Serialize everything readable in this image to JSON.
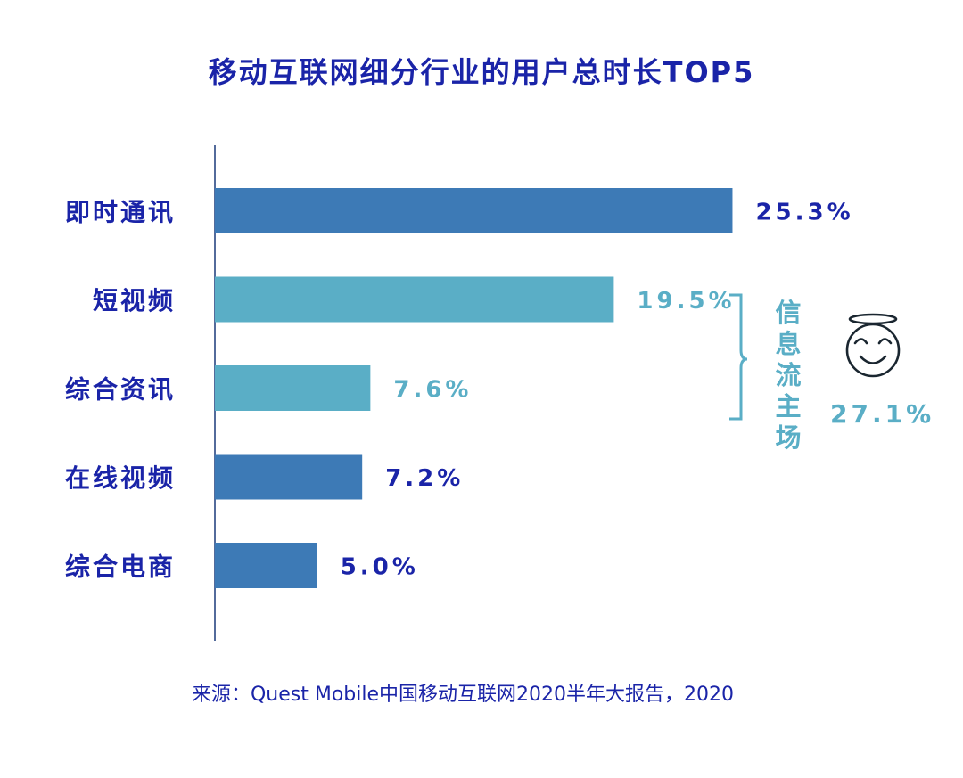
{
  "chart_data": {
    "type": "bar",
    "orientation": "horizontal",
    "title": "移动互联网细分行业的用户总时长TOP5",
    "categories": [
      "即时通讯",
      "短视频",
      "综合资讯",
      "在线视频",
      "综合电商"
    ],
    "values": [
      25.3,
      19.5,
      7.6,
      7.2,
      5.0
    ],
    "value_labels": [
      "25.3%",
      "19.5%",
      "7.6%",
      "7.2%",
      "5.0%"
    ],
    "highlighted": [
      false,
      true,
      true,
      false,
      false
    ],
    "xlim": [
      0,
      26.5
    ],
    "grid": false,
    "annotation": {
      "label": "信息流主场",
      "value_label": "27.1%",
      "icon": "smiling-angel-face-icon",
      "applies_to": [
        "短视频",
        "综合资讯"
      ]
    },
    "source": "来源：Quest Mobile中国移动互联网2020半年大报告，2020"
  },
  "colors": {
    "title": "#1a24a8",
    "category_label": "#1a24a8",
    "bar_default": "#3d7ab6",
    "bar_highlight": "#5aaec6",
    "highlight_text": "#5aaec6",
    "axis": "#1a3a7a",
    "icon": "#1a2630",
    "source_text": "#1a24a8"
  }
}
